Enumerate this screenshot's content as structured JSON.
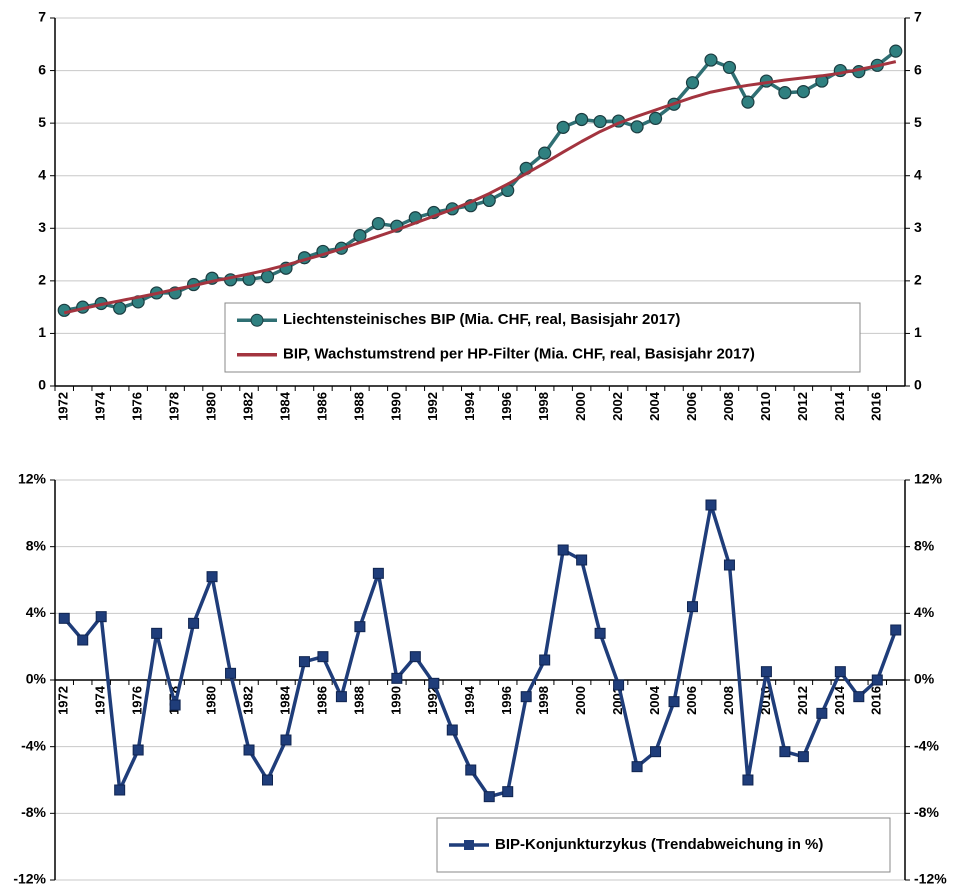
{
  "chart_data": [
    {
      "type": "line",
      "categories": [
        "1972",
        null,
        "1974",
        null,
        "1976",
        null,
        "1978",
        null,
        "1980",
        null,
        "1982",
        null,
        "1984",
        null,
        "1986",
        null,
        "1988",
        null,
        "1990",
        null,
        "1992",
        null,
        "1994",
        null,
        "1996",
        null,
        "1998",
        null,
        "2000",
        null,
        "2002",
        null,
        "2004",
        null,
        "2006",
        null,
        "2008",
        null,
        "2010",
        null,
        "2012",
        null,
        "2014",
        null,
        "2016",
        null
      ],
      "series": [
        {
          "name": "Liechtensteinisches BIP (Mia. CHF, real, Basisjahr 2017)",
          "color": "#2f6f73",
          "marker": "circle",
          "values": [
            1.44,
            1.5,
            1.57,
            1.48,
            1.6,
            1.77,
            1.77,
            1.93,
            2.05,
            2.02,
            2.03,
            2.08,
            2.24,
            2.44,
            2.56,
            2.62,
            2.86,
            3.09,
            3.04,
            3.2,
            3.3,
            3.37,
            3.43,
            3.53,
            3.72,
            4.14,
            4.43,
            4.92,
            5.07,
            5.03,
            5.04,
            4.93,
            5.09,
            5.36,
            5.77,
            6.2,
            6.06,
            5.4,
            5.8,
            5.58,
            5.6,
            5.8,
            6.0,
            5.98,
            6.1,
            6.37
          ]
        },
        {
          "name": "BIP, Wachstumstrend per HP-Filter (Mia. CHF, real, Basisjahr 2017)",
          "color": "#a3343f",
          "marker": "none",
          "values": [
            1.39,
            1.47,
            1.55,
            1.62,
            1.69,
            1.76,
            1.84,
            1.91,
            1.99,
            2.06,
            2.13,
            2.21,
            2.3,
            2.4,
            2.5,
            2.61,
            2.73,
            2.85,
            2.97,
            3.1,
            3.23,
            3.36,
            3.5,
            3.66,
            3.84,
            4.04,
            4.24,
            4.45,
            4.65,
            4.84,
            5.0,
            5.13,
            5.25,
            5.37,
            5.49,
            5.59,
            5.66,
            5.72,
            5.77,
            5.82,
            5.86,
            5.9,
            5.95,
            6.02,
            6.09,
            6.17
          ]
        }
      ],
      "ylim": [
        0,
        7
      ],
      "yticks": [
        0,
        1,
        2,
        3,
        4,
        5,
        6,
        7
      ],
      "grid": true,
      "legend": "lower right"
    },
    {
      "type": "line",
      "categories": [
        "1972",
        null,
        "1974",
        null,
        "1976",
        null,
        "1978",
        null,
        "1980",
        null,
        "1982",
        null,
        "1984",
        null,
        "1986",
        null,
        "1988",
        null,
        "1990",
        null,
        "1992",
        null,
        "1994",
        null,
        "1996",
        null,
        "1998",
        null,
        "2000",
        null,
        "2002",
        null,
        "2004",
        null,
        "2006",
        null,
        "2008",
        null,
        "2010",
        null,
        "2012",
        null,
        "2014",
        null,
        "2016",
        null
      ],
      "series": [
        {
          "name": "BIP-Konjunkturzykus (Trendabweichung in %)",
          "color": "#1f3d7a",
          "marker": "square",
          "values": [
            3.7,
            2.4,
            3.8,
            -6.6,
            -4.2,
            2.8,
            -1.5,
            3.4,
            6.2,
            0.4,
            -4.2,
            -6.0,
            -3.6,
            1.1,
            1.4,
            -1.0,
            3.2,
            6.4,
            0.1,
            1.4,
            -0.2,
            -3.0,
            -5.4,
            -7.0,
            -6.7,
            -1.0,
            1.2,
            7.8,
            7.2,
            2.8,
            -0.3,
            -5.2,
            -4.3,
            -1.3,
            4.4,
            10.5,
            6.9,
            -6.0,
            0.5,
            -4.3,
            -4.6,
            -2.0,
            0.5,
            -1.0,
            0.0,
            3.0
          ]
        }
      ],
      "ylim": [
        -12,
        12
      ],
      "yticks": [
        {
          "value": -12,
          "label": "-12%"
        },
        {
          "value": -8,
          "label": "-8%"
        },
        {
          "value": -4,
          "label": "-4%"
        },
        {
          "value": 0,
          "label": "0%"
        },
        {
          "value": 4,
          "label": "4%"
        },
        {
          "value": 8,
          "label": "8%"
        },
        {
          "value": 12,
          "label": "12%"
        }
      ],
      "grid": true,
      "legend": "lower right"
    }
  ]
}
